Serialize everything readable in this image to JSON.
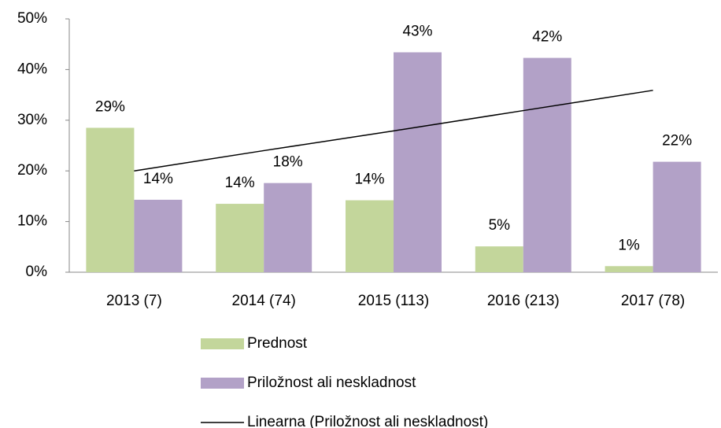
{
  "chart_data": {
    "type": "bar",
    "categories": [
      "2013 (7)",
      "2014 (74)",
      "2015 (113)",
      "2016 (213)",
      "2017 (78)"
    ],
    "series": [
      {
        "name": "Prednost",
        "color": "#c3d69b",
        "values": [
          28.5,
          13.5,
          14.2,
          5.1,
          1.2
        ],
        "value_labels": [
          "29%",
          "14%",
          "14%",
          "5%",
          "1%"
        ]
      },
      {
        "name": "Priložnost ali neskladnost",
        "color": "#b2a1c7",
        "values": [
          14.3,
          17.6,
          43.4,
          42.3,
          21.8
        ],
        "value_labels": [
          "14%",
          "18%",
          "43%",
          "42%",
          "22%"
        ]
      },
      {
        "name": "Linearna (Priložnost ali neskladnost)",
        "type": "line",
        "color": "#000000",
        "values": [
          20.0,
          24.0,
          27.9,
          31.9,
          35.9
        ]
      }
    ],
    "ylim": [
      0,
      50
    ],
    "yticks": [
      {
        "value": 0,
        "label": "0%"
      },
      {
        "value": 10,
        "label": "10%"
      },
      {
        "value": 20,
        "label": "20%"
      },
      {
        "value": 30,
        "label": "30%"
      },
      {
        "value": 40,
        "label": "40%"
      },
      {
        "value": 50,
        "label": "50%"
      }
    ],
    "grid": false,
    "legend": "bottom"
  }
}
